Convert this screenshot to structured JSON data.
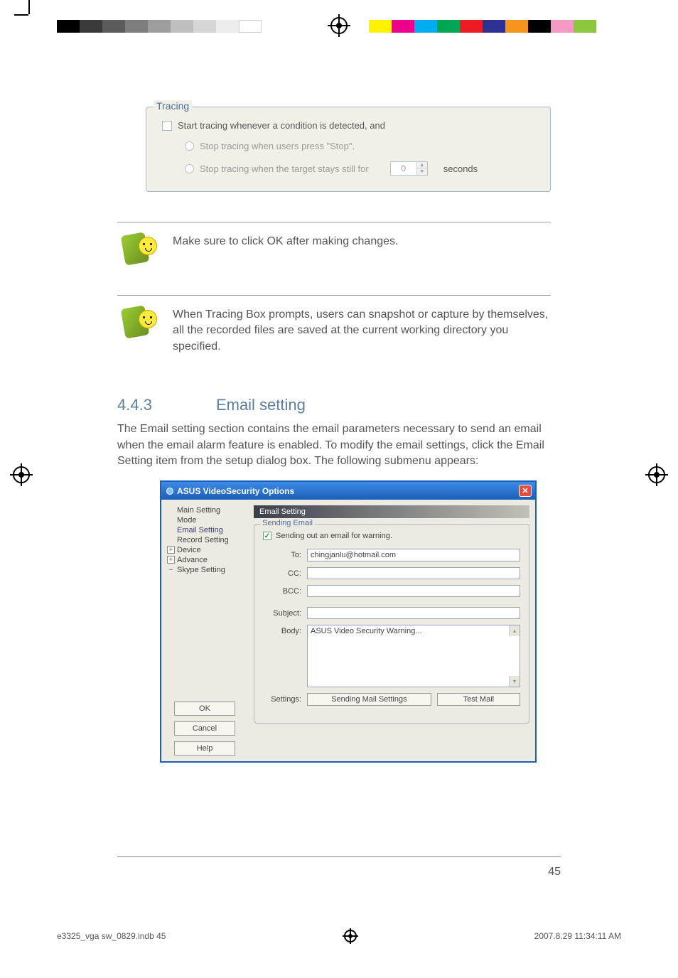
{
  "printMarks": {
    "leftBarColors": [
      "#000000",
      "#3a3a3a",
      "#5b5b5b",
      "#7d7d7d",
      "#9e9e9e",
      "#bfbfbf",
      "#d6d6d6",
      "#ededed",
      "#ffffff"
    ],
    "rightBarColors": [
      "#fff200",
      "#ec008c",
      "#00aeef",
      "#00a651",
      "#ed1c24",
      "#2e3192",
      "#f7941d",
      "#000000",
      "#f49ac1",
      "#8dc63f"
    ]
  },
  "tracing": {
    "legend": "Tracing",
    "checkboxLabel": "Start tracing whenever a condition is detected,  and",
    "radio1": "Stop tracing when users press \"Stop\".",
    "radio2": "Stop tracing when the target stays still for",
    "spinnerValue": "0",
    "secondsLabel": "seconds"
  },
  "note1": "Make sure to click OK after making changes.",
  "note2": "When Tracing Box prompts, users can snapshot or capture by themselves, all the recorded files are saved at the current working directory you specified.",
  "section": {
    "number": "4.4.3",
    "title": "Email setting"
  },
  "sectionBody": "The Email setting section contains the email parameters necessary to send an email when the email alarm feature is enabled. To modify the email settings, click the Email Setting item from the setup dialog box. The following submenu appears:",
  "xp": {
    "title": "ASUS VideoSecurity Options",
    "tree": [
      "Main Setting",
      "Mode",
      "Email Setting",
      "Record Setting",
      "Device",
      "Advance",
      "Skype Setting"
    ],
    "treeSelectedIndex": 2,
    "treeExpandable": [
      4,
      5
    ],
    "btnOk": "OK",
    "btnCancel": "Cancel",
    "btnHelp": "Help",
    "panelTitle": "Email Setting",
    "groupLegend": "Sending Email",
    "checkLabel": "Sending out an email for warning.",
    "labels": {
      "to": "To:",
      "cc": "CC:",
      "bcc": "BCC:",
      "subject": "Subject:",
      "body": "Body:",
      "settings": "Settings:"
    },
    "values": {
      "to": "chingjanlu@hotmail.com",
      "cc": "",
      "bcc": "",
      "subject": "",
      "body": "ASUS Video Security Warning..."
    },
    "btnSendSettings": "Sending Mail Settings",
    "btnTest": "Test Mail"
  },
  "pageNumber": "45",
  "footer": {
    "left": "e3325_vga sw_0829.indb   45",
    "right": "2007.8.29   11:34:11 AM"
  }
}
